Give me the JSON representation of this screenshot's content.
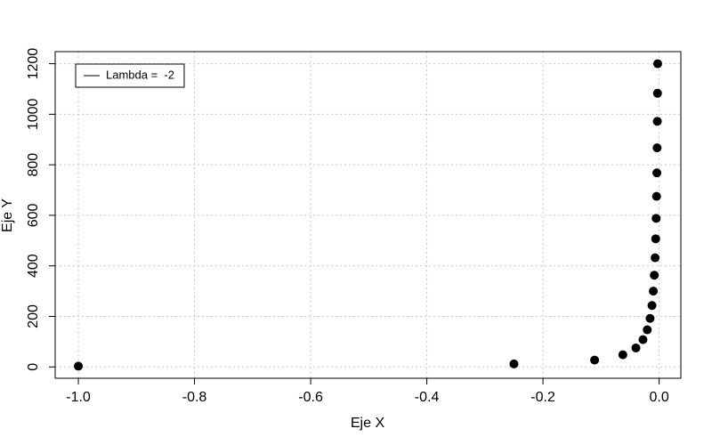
{
  "chart_data": {
    "type": "scatter",
    "x_label": "Eje X",
    "y_label": "Eje Y",
    "series": [
      {
        "name": "Lambda =  -2",
        "color": "#000000",
        "x": [
          -1,
          -0.25,
          -0.1111,
          -0.0625,
          -0.04,
          -0.0278,
          -0.0204,
          -0.0156,
          -0.0123,
          -0.01,
          -0.0083,
          -0.0069,
          -0.0059,
          -0.0051,
          -0.0044,
          -0.0039,
          -0.0035,
          -0.0031,
          -0.0028,
          -0.0025
        ],
        "values": [
          3,
          12,
          27,
          48,
          75,
          108,
          147,
          192,
          243,
          300,
          363,
          432,
          507,
          588,
          675,
          768,
          867,
          972,
          1083,
          1200
        ]
      }
    ],
    "xlim": [
      -1.0399,
      0.0374
    ],
    "ylim": [
      -44.88,
      1247.88
    ],
    "xticks": [
      {
        "value": -1,
        "label": "-1.0"
      },
      -0.8,
      -0.6,
      -0.4,
      -0.2,
      {
        "value": 0,
        "label": "0.0"
      }
    ],
    "yticks": [
      0,
      200,
      400,
      600,
      800,
      1000,
      1200
    ],
    "grid": true,
    "legend": "top-left"
  }
}
